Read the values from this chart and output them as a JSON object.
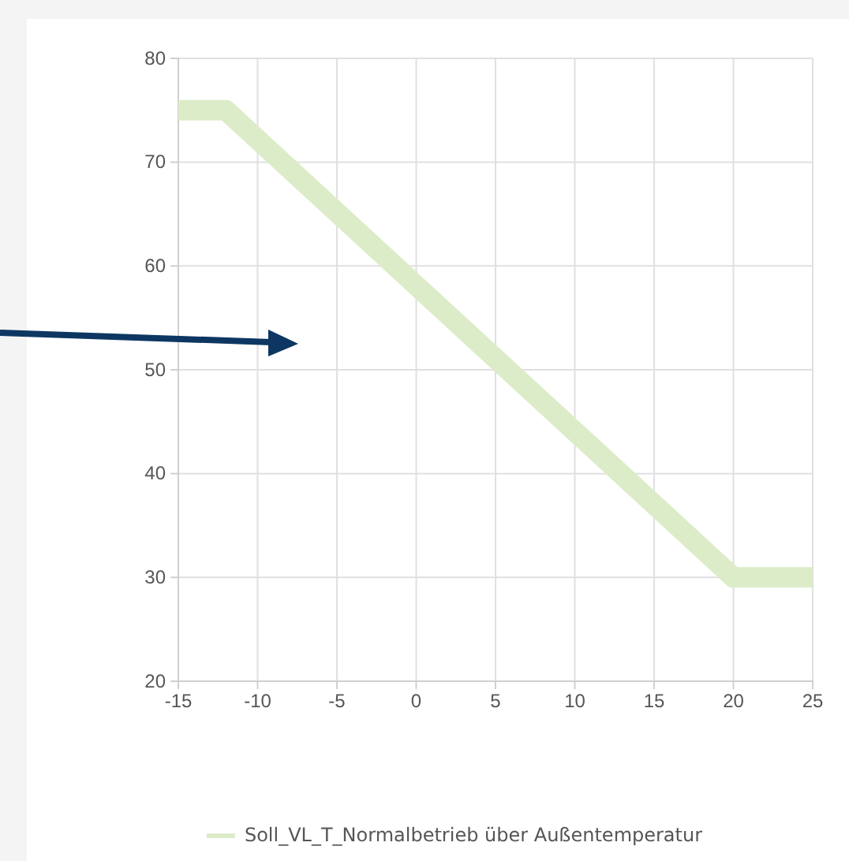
{
  "chart_data": {
    "type": "line",
    "x": [
      -15,
      -12,
      20,
      25
    ],
    "series": [
      {
        "name": "Soll_VL_T_Normalbetrieb über Außentemperatur",
        "color": "#dcecc8",
        "values": [
          75,
          75,
          30,
          30
        ]
      }
    ],
    "xlim": [
      -15,
      25
    ],
    "xticks": [
      -15,
      -10,
      -5,
      0,
      5,
      10,
      15,
      20,
      25
    ],
    "ylim": [
      20,
      80
    ],
    "yticks": [
      20,
      30,
      40,
      50,
      60,
      70,
      80
    ],
    "grid": true,
    "legend": "bottom",
    "marker": "none",
    "line_style": "solid"
  }
}
